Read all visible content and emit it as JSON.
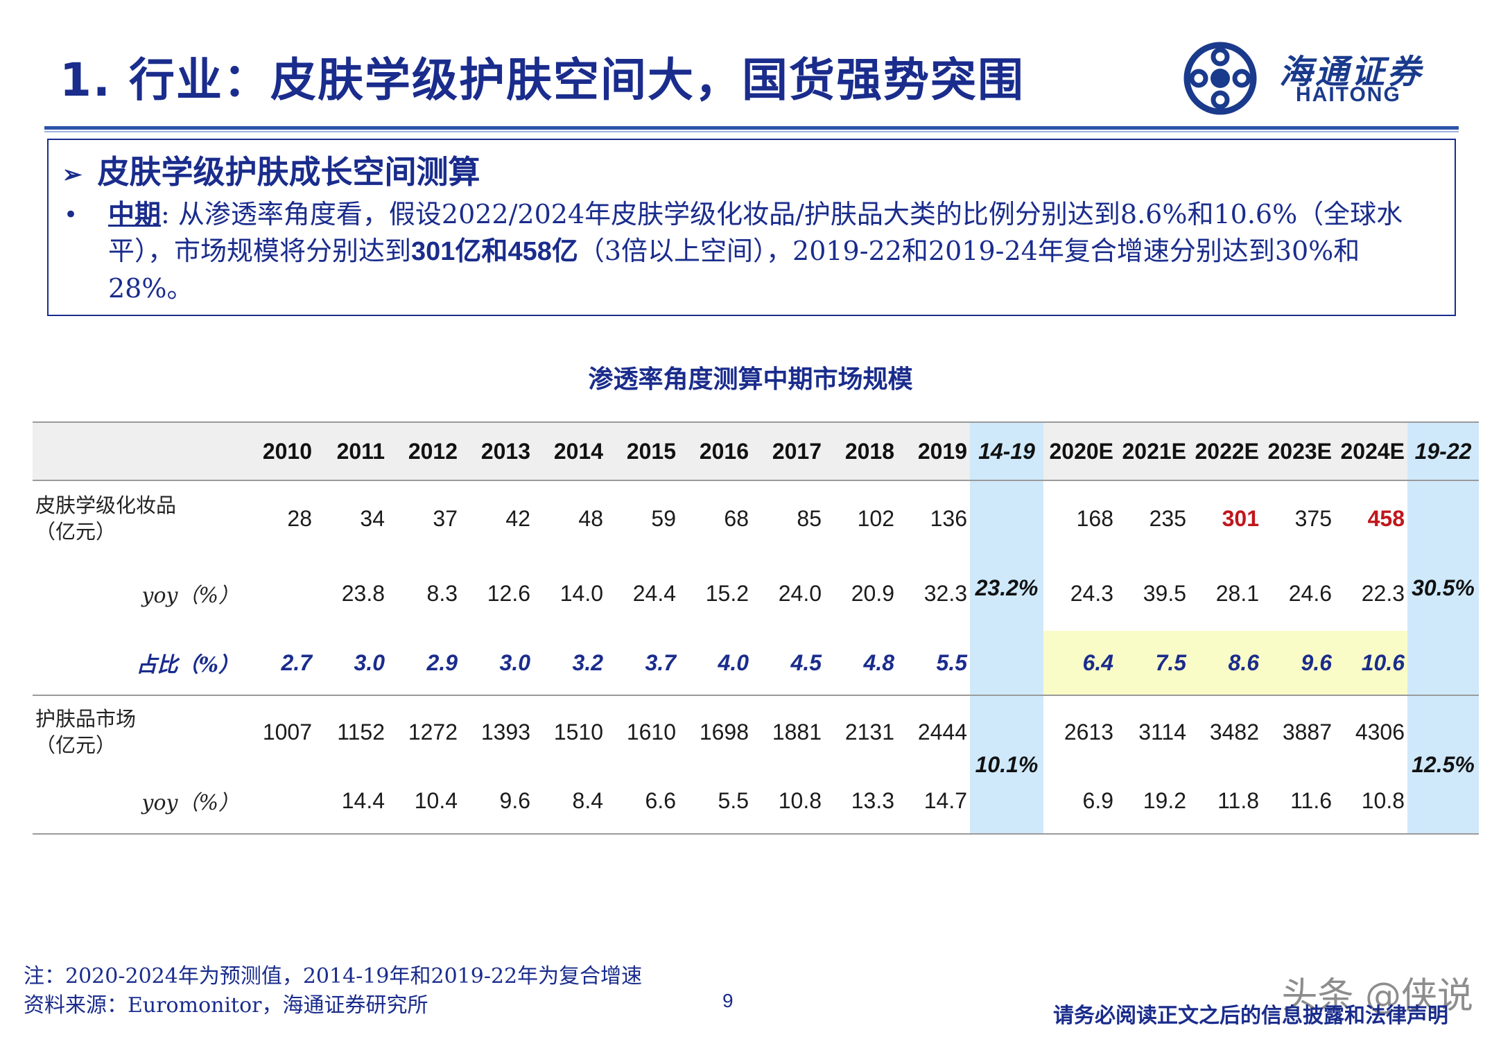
{
  "header": {
    "title": "1. 行业：皮肤学级护肤空间大，国货强势突围",
    "logo_cn": "海通证券",
    "logo_en": "HAITONG",
    "brand_color": "#1a2c8c"
  },
  "summary_box": {
    "heading": "皮肤学级护肤成长空间测算",
    "lead": "中期",
    "text_parts": [
      ": 从渗透率角度看，假设2022/2024年皮肤学级化妆品/护肤品大类的比例分别达到8.6%和10.6%（全球水平），市场规模将分别达到",
      "301亿",
      "和",
      "458亿",
      "（3倍以上空间），2019-22和2019-24年复合增速分别达到30%和28%。"
    ]
  },
  "table": {
    "title": "渗透率角度测算中期市场规模",
    "headers": [
      "2010",
      "2011",
      "2012",
      "2013",
      "2014",
      "2015",
      "2016",
      "2017",
      "2018",
      "2019",
      "14-19",
      "2020E",
      "2021E",
      "2022E",
      "2023E",
      "2024E",
      "19-22"
    ],
    "rows": {
      "derma": {
        "label_line1": "皮肤学级化妆品",
        "label_line2": "（亿元）",
        "hist": [
          "28",
          "34",
          "37",
          "42",
          "48",
          "59",
          "68",
          "85",
          "102",
          "136"
        ],
        "fcst": [
          "168",
          "235",
          "301",
          "375",
          "458"
        ],
        "cagr_hist": "23.2%",
        "cagr_fcst": "30.5%"
      },
      "derma_yoy": {
        "label": "yoy（%）",
        "hist": [
          "",
          "23.8",
          "8.3",
          "12.6",
          "14.0",
          "24.4",
          "15.2",
          "24.0",
          "20.9",
          "32.3"
        ],
        "fcst": [
          "24.3",
          "39.5",
          "28.1",
          "24.6",
          "22.3"
        ]
      },
      "share": {
        "label": "占比（%）",
        "hist": [
          "2.7",
          "3.0",
          "2.9",
          "3.0",
          "3.2",
          "3.7",
          "4.0",
          "4.5",
          "4.8",
          "5.5"
        ],
        "fcst": [
          "6.4",
          "7.5",
          "8.6",
          "9.6",
          "10.6"
        ]
      },
      "skincare": {
        "label_line1": "护肤品市场",
        "label_line2": "（亿元）",
        "hist": [
          "1007",
          "1152",
          "1272",
          "1393",
          "1510",
          "1610",
          "1698",
          "1881",
          "2131",
          "2444"
        ],
        "fcst": [
          "2613",
          "3114",
          "3482",
          "3887",
          "4306"
        ],
        "cagr_hist": "10.1%",
        "cagr_fcst": "12.5%"
      },
      "skincare_yoy": {
        "label": "yoy（%）",
        "hist": [
          "",
          "14.4",
          "10.4",
          "9.6",
          "8.4",
          "6.6",
          "5.5",
          "10.8",
          "13.3",
          "14.7"
        ],
        "fcst": [
          "6.9",
          "19.2",
          "11.8",
          "11.6",
          "10.8"
        ]
      }
    },
    "colors": {
      "cagr_column": "#cfe9fb",
      "highlight": "#fafcc8",
      "emphasis_red": "#c0161c"
    }
  },
  "footer": {
    "note": "注：2020-2024年为预测值，2014-19年和2019-22年为复合增速",
    "source": "资料来源：Euromonitor，海通证券研究所",
    "page_number": "9",
    "disclaimer": "请务必阅读正文之后的信息披露和法律声明",
    "watermark": "头条 @侠说"
  }
}
